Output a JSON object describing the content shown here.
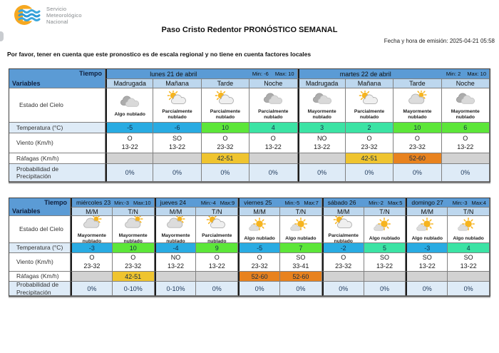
{
  "logo": {
    "line1": "Servicio",
    "line2": "Meteorológico",
    "line3": "Nacional"
  },
  "title": "Paso Cristo Redentor PRONÓSTICO SEMANAL",
  "emission": "Fecha y hora de emisión: 2025-04-21 05:58",
  "note": "Por favor, tener en cuenta que este pronostico es de escala regional y no tiene en cuenta factores locales",
  "corner": {
    "top": "Tiempo",
    "bottom": "Variables"
  },
  "row_labels": {
    "sky": "Estado del Cielo",
    "temp": "Temperatura (°C)",
    "wind": "Viento (Km/h)",
    "gusts": "Ráfagas (Km/h)",
    "precip": "Probabilidad de Precipitación"
  },
  "colors": {
    "header_blue": "#5B9BD5",
    "subheader_blue": "#BDD7EE",
    "light_row": "#DEEBF7",
    "temp_cold": "#29ABE2",
    "temp_mild": "#3BE3A4",
    "temp_warm": "#5CE639",
    "gust_none": "#D2D2D2",
    "gust_strong": "#EFC42F",
    "gust_severe": "#E8821E"
  },
  "table1": {
    "days": [
      {
        "name": "lunes 21 de abril",
        "min": "Min: -6",
        "max": "Max: 10",
        "times": [
          "Madrugada",
          "Mañana",
          "Tarde",
          "Noche"
        ]
      },
      {
        "name": "martes 22 de abril",
        "min": "Min: 2",
        "max": "Max: 10",
        "times": [
          "Madrugada",
          "Mañana",
          "Tarde",
          "Noche"
        ]
      }
    ],
    "sky": [
      {
        "icon": "night-clouds",
        "label": "Algo nublado"
      },
      {
        "icon": "partly-cloudy",
        "label": "Parcialmente nublado"
      },
      {
        "icon": "partly-cloudy",
        "label": "Parcialmente nublado"
      },
      {
        "icon": "night-clouds",
        "label": "Parcialmente nublado"
      },
      {
        "icon": "night-clouds",
        "label": "Mayormente nublado"
      },
      {
        "icon": "partly-cloudy",
        "label": "Parcialmente nublado"
      },
      {
        "icon": "mostly-cloudy",
        "label": "Mayormente nublado"
      },
      {
        "icon": "night-clouds",
        "label": "Mayormente nublado"
      }
    ],
    "temp": [
      {
        "value": "-5",
        "level": "cold"
      },
      {
        "value": "-6",
        "level": "cold"
      },
      {
        "value": "10",
        "level": "warm"
      },
      {
        "value": "4",
        "level": "mild"
      },
      {
        "value": "3",
        "level": "mild"
      },
      {
        "value": "2",
        "level": "mild"
      },
      {
        "value": "10",
        "level": "warm"
      },
      {
        "value": "6",
        "level": "warm"
      }
    ],
    "wind": [
      {
        "dir": "O",
        "speed": "13-22"
      },
      {
        "dir": "SO",
        "speed": "13-22"
      },
      {
        "dir": "O",
        "speed": "23-32"
      },
      {
        "dir": "O",
        "speed": "13-22"
      },
      {
        "dir": "NO",
        "speed": "13-22"
      },
      {
        "dir": "O",
        "speed": "23-32"
      },
      {
        "dir": "O",
        "speed": "23-32"
      },
      {
        "dir": "O",
        "speed": "13-22"
      }
    ],
    "gusts": [
      {
        "value": "",
        "level": "none"
      },
      {
        "value": "",
        "level": "none"
      },
      {
        "value": "42-51",
        "level": "strong"
      },
      {
        "value": "",
        "level": "none"
      },
      {
        "value": "",
        "level": "none"
      },
      {
        "value": "42-51",
        "level": "strong"
      },
      {
        "value": "52-60",
        "level": "severe"
      },
      {
        "value": "",
        "level": "none"
      }
    ],
    "precip": [
      "0%",
      "0%",
      "0%",
      "0%",
      "0%",
      "0%",
      "0%",
      "0%"
    ]
  },
  "table2": {
    "days": [
      {
        "name": "miércoles 23",
        "min": "Min:-3",
        "max": "Max:10",
        "times": [
          "M/M",
          "T/N"
        ]
      },
      {
        "name": "jueves 24",
        "min": "Min:-4",
        "max": "Max:9",
        "times": [
          "M/M",
          "T/N"
        ]
      },
      {
        "name": "viernes 25",
        "min": "Min:-5",
        "max": "Max:7",
        "times": [
          "M/M",
          "T/N"
        ]
      },
      {
        "name": "sábado 26",
        "min": "Min:-2",
        "max": "Max:5",
        "times": [
          "M/M",
          "T/N"
        ]
      },
      {
        "name": "domingo 27",
        "min": "Min:-3",
        "max": "Max:4",
        "times": [
          "M/M",
          "T/N"
        ]
      }
    ],
    "sky": [
      {
        "icon": "mostly-cloudy",
        "label": "Mayormente nublado"
      },
      {
        "icon": "mostly-cloudy",
        "label": "Mayormente nublado"
      },
      {
        "icon": "mostly-cloudy",
        "label": "Mayormente nublado"
      },
      {
        "icon": "partly-cloudy",
        "label": "Parcialmente nublado"
      },
      {
        "icon": "slightly-cloudy",
        "label": "Algo nublado"
      },
      {
        "icon": "slightly-cloudy",
        "label": "Algo nublado"
      },
      {
        "icon": "partly-cloudy",
        "label": "Parcialmente nublado"
      },
      {
        "icon": "slightly-cloudy",
        "label": "Algo nublado"
      },
      {
        "icon": "slightly-cloudy",
        "label": "Algo nublado"
      },
      {
        "icon": "slightly-cloudy",
        "label": "Algo nublado"
      }
    ],
    "temp": [
      {
        "value": "-3",
        "level": "cold"
      },
      {
        "value": "10",
        "level": "warm"
      },
      {
        "value": "-4",
        "level": "cold"
      },
      {
        "value": "9",
        "level": "warm"
      },
      {
        "value": "-5",
        "level": "cold"
      },
      {
        "value": "7",
        "level": "warm"
      },
      {
        "value": "-2",
        "level": "cold"
      },
      {
        "value": "5",
        "level": "mild"
      },
      {
        "value": "-3",
        "level": "cold"
      },
      {
        "value": "4",
        "level": "mild"
      }
    ],
    "wind": [
      {
        "dir": "O",
        "speed": "23-32"
      },
      {
        "dir": "O",
        "speed": "23-32"
      },
      {
        "dir": "NO",
        "speed": "13-22"
      },
      {
        "dir": "O",
        "speed": "13-22"
      },
      {
        "dir": "O",
        "speed": "23-32"
      },
      {
        "dir": "SO",
        "speed": "33-41"
      },
      {
        "dir": "O",
        "speed": "23-32"
      },
      {
        "dir": "SO",
        "speed": "13-22"
      },
      {
        "dir": "SO",
        "speed": "13-22"
      },
      {
        "dir": "SO",
        "speed": "13-22"
      }
    ],
    "gusts": [
      {
        "value": "",
        "level": "none"
      },
      {
        "value": "42-51",
        "level": "strong"
      },
      {
        "value": "",
        "level": "none"
      },
      {
        "value": "",
        "level": "none"
      },
      {
        "value": "52-60",
        "level": "severe"
      },
      {
        "value": "52-60",
        "level": "severe"
      },
      {
        "value": "",
        "level": "none"
      },
      {
        "value": "",
        "level": "none"
      },
      {
        "value": "",
        "level": "none"
      },
      {
        "value": "",
        "level": "none"
      }
    ],
    "precip": [
      "0%",
      "0-10%",
      "0-10%",
      "0%",
      "0%",
      "0%",
      "0%",
      "0%",
      "0%",
      "0%"
    ]
  }
}
